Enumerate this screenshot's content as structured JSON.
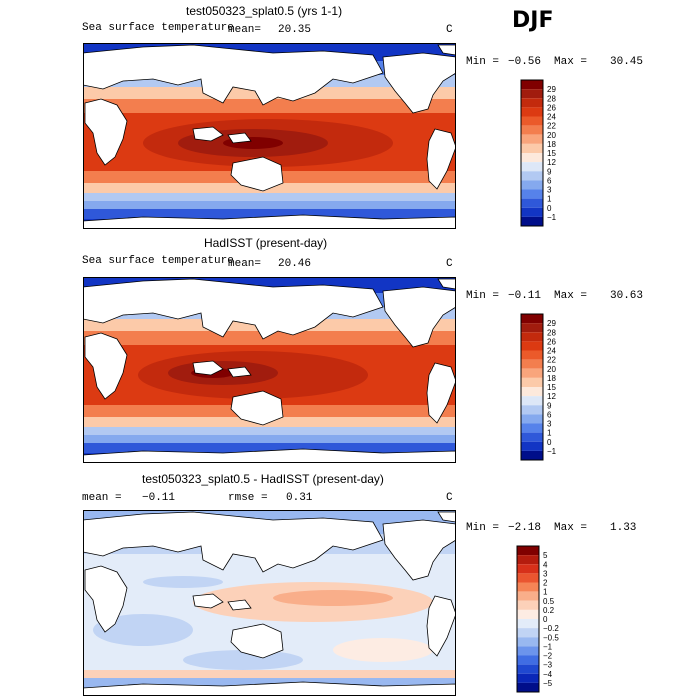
{
  "season": "DJF",
  "panels": [
    {
      "title": "test050323_splat0.5 (yrs 1-1)",
      "left_label": "Sea surface temperature",
      "mean_label": "mean=",
      "mean_value": "20.35",
      "units": "C",
      "min_label": "Min =",
      "min_value": "−0.56",
      "max_label": "Max =",
      "max_value": "30.45",
      "colorbar": {
        "labels": [
          "29",
          "28",
          "26",
          "24",
          "22",
          "20",
          "18",
          "15",
          "12",
          "9",
          "6",
          "3",
          "1",
          "0",
          "−1"
        ],
        "colors": [
          "#800000",
          "#a11c0e",
          "#c32a0d",
          "#dc3a12",
          "#eb5a2a",
          "#f37e4e",
          "#f9a57c",
          "#fccaa9",
          "#fde9dc",
          "#dde7f7",
          "#b2c9f2",
          "#85a9ee",
          "#5682ea",
          "#2f58d9",
          "#1235c4",
          "#000e8a"
        ]
      }
    },
    {
      "title": "HadISST (present-day)",
      "left_label": "Sea surface temperature",
      "mean_label": "mean=",
      "mean_value": "20.46",
      "units": "C",
      "min_label": "Min =",
      "min_value": "−0.11",
      "max_label": "Max =",
      "max_value": "30.63",
      "colorbar": {
        "labels": [
          "29",
          "28",
          "26",
          "24",
          "22",
          "20",
          "18",
          "15",
          "12",
          "9",
          "6",
          "3",
          "1",
          "0",
          "−1"
        ],
        "colors": [
          "#800000",
          "#a11c0e",
          "#c32a0d",
          "#dc3a12",
          "#eb5a2a",
          "#f37e4e",
          "#f9a57c",
          "#fccaa9",
          "#fde9dc",
          "#dde7f7",
          "#b2c9f2",
          "#85a9ee",
          "#5682ea",
          "#2f58d9",
          "#1235c4",
          "#000e8a"
        ]
      }
    },
    {
      "title": "test050323_splat0.5 - HadISST (present-day)",
      "mean_label": "mean =",
      "mean_value": "−0.11",
      "rmse_label": "rmse =",
      "rmse_value": "0.31",
      "units": "C",
      "min_label": "Min =",
      "min_value": "−2.18",
      "max_label": "Max =",
      "max_value": "1.33",
      "colorbar": {
        "labels": [
          "5",
          "4",
          "3",
          "2",
          "1",
          "0.5",
          "0.2",
          "0",
          "−0.2",
          "−0.5",
          "−1",
          "−2",
          "−3",
          "−4",
          "−5"
        ],
        "colors": [
          "#800000",
          "#b41c0e",
          "#d7301a",
          "#ea5530",
          "#f58456",
          "#f9ae8a",
          "#fcd1b9",
          "#fdece3",
          "#e3ecf9",
          "#c1d4f4",
          "#99b8f0",
          "#6c94ec",
          "#406de3",
          "#1f48d0",
          "#0a27b8",
          "#000e8a"
        ]
      }
    }
  ]
}
